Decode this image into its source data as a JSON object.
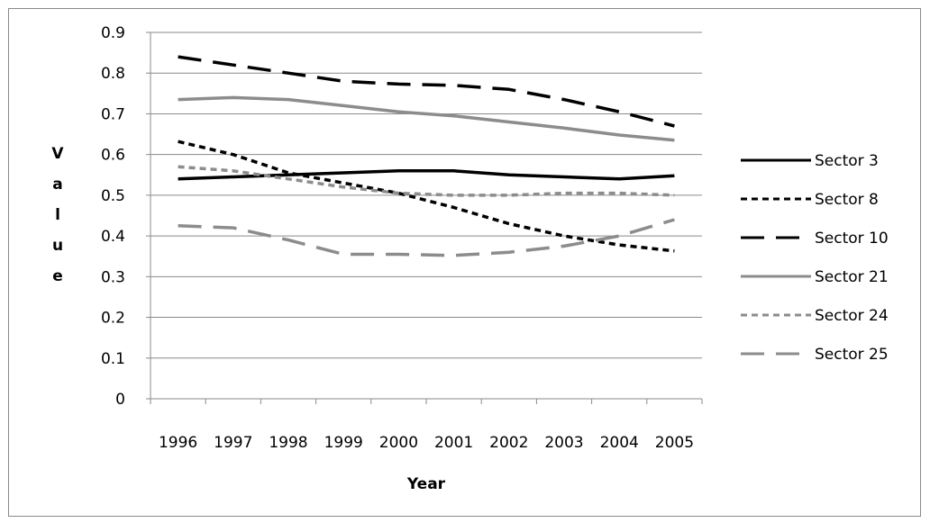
{
  "chart_data": {
    "type": "line",
    "title": "",
    "xlabel": "Year",
    "ylabel": "Value",
    "categories": [
      "1996",
      "1997",
      "1998",
      "1999",
      "2000",
      "2001",
      "2002",
      "2003",
      "2004",
      "2005"
    ],
    "ylim": [
      0,
      0.9
    ],
    "yticks": [
      "0",
      "0.1",
      "0.2",
      "0.3",
      "0.4",
      "0.5",
      "0.6",
      "0.7",
      "0.8",
      "0.9"
    ],
    "grid": true,
    "legend_position": "right",
    "series": [
      {
        "name": "Sector 3",
        "color": "#000000",
        "dash": "solid",
        "values": [
          0.54,
          0.545,
          0.55,
          0.555,
          0.56,
          0.56,
          0.55,
          0.545,
          0.54,
          0.548
        ]
      },
      {
        "name": "Sector 8",
        "color": "#000000",
        "dash": "short",
        "values": [
          0.632,
          0.6,
          0.555,
          0.53,
          0.505,
          0.47,
          0.43,
          0.4,
          0.378,
          0.363
        ]
      },
      {
        "name": "Sector 10",
        "color": "#000000",
        "dash": "long",
        "values": [
          0.84,
          0.82,
          0.8,
          0.78,
          0.773,
          0.77,
          0.76,
          0.735,
          0.705,
          0.67
        ]
      },
      {
        "name": "Sector 21",
        "color": "#8c8c8c",
        "dash": "solid",
        "values": [
          0.735,
          0.74,
          0.735,
          0.72,
          0.705,
          0.695,
          0.68,
          0.665,
          0.648,
          0.635
        ]
      },
      {
        "name": "Sector 24",
        "color": "#8c8c8c",
        "dash": "short",
        "values": [
          0.57,
          0.56,
          0.54,
          0.52,
          0.505,
          0.5,
          0.5,
          0.505,
          0.505,
          0.5
        ]
      },
      {
        "name": "Sector 25",
        "color": "#8c8c8c",
        "dash": "long",
        "values": [
          0.425,
          0.42,
          0.39,
          0.355,
          0.355,
          0.352,
          0.36,
          0.375,
          0.4,
          0.44
        ]
      }
    ]
  }
}
